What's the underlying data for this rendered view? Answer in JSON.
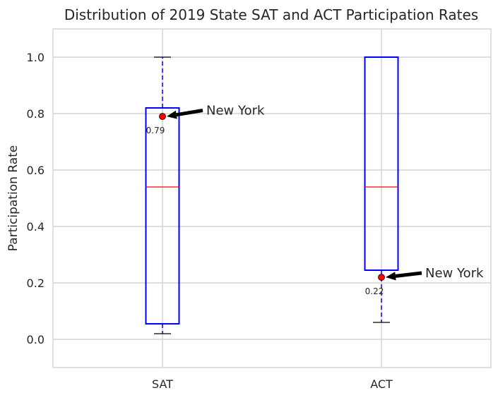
{
  "chart_data": {
    "type": "box",
    "title": "Distribution of 2019 State SAT and ACT Participation Rates",
    "xlabel": "",
    "ylabel": "Participation Rate",
    "ylim": [
      -0.1,
      1.1
    ],
    "yticks": [
      "0.0",
      "0.2",
      "0.4",
      "0.6",
      "0.8",
      "1.0"
    ],
    "ytick_values": [
      0.0,
      0.2,
      0.4,
      0.6,
      0.8,
      1.0
    ],
    "grid": true,
    "categories": [
      "SAT",
      "ACT"
    ],
    "boxes": [
      {
        "name": "SAT",
        "whisker_low": 0.02,
        "q1": 0.055,
        "median": 0.54,
        "q3": 0.82,
        "whisker_high": 1.0
      },
      {
        "name": "ACT",
        "whisker_low": 0.06,
        "q1": 0.245,
        "median": 0.54,
        "q3": 1.0,
        "whisker_high": 1.0
      }
    ],
    "highlights": [
      {
        "category": "SAT",
        "label": "New York",
        "value": 0.79,
        "value_label": "0.79"
      },
      {
        "category": "ACT",
        "label": "New York",
        "value": 0.22,
        "value_label": "0.22"
      }
    ],
    "colors": {
      "box": "#0000ff",
      "median": "#ff0000",
      "whisker_cap": "#000000",
      "highlight_point": "#ff0000",
      "arrow": "#000000",
      "grid": "#cccccc",
      "axes": "#cccccc"
    }
  }
}
